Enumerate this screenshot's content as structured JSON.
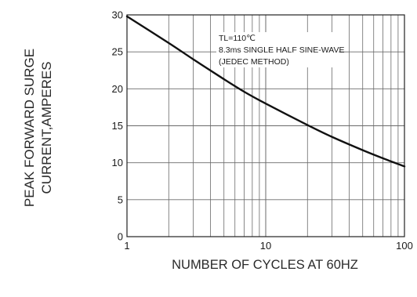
{
  "chart_data": {
    "type": "line",
    "xlabel": "NUMBER  OF  CYCLES AT 60HZ",
    "ylabel_lines": [
      "PEAK FORWARD SURGE",
      "CURRENT,AMPERES"
    ],
    "x_scale": "log",
    "xlim": [
      1,
      100
    ],
    "ylim": [
      0,
      30
    ],
    "x_ticks": [
      1,
      10,
      100
    ],
    "x_tick_labels": [
      "1",
      "10",
      "100"
    ],
    "y_ticks": [
      0,
      5,
      10,
      15,
      20,
      25,
      30
    ],
    "y_tick_labels": [
      "0",
      "5",
      "10",
      "15",
      "20",
      "25",
      "30"
    ],
    "grid": true,
    "annotation_lines": [
      "TL=110℃",
      "8.3ms SINGLE HALF SINE-WAVE",
      "(JEDEC METHOD)"
    ],
    "series": [
      {
        "color": "#111111",
        "x": [
          1,
          2,
          3,
          5,
          7,
          10,
          20,
          30,
          50,
          70,
          100
        ],
        "y": [
          29.8,
          26.2,
          24.0,
          21.3,
          19.6,
          18.0,
          15.1,
          13.5,
          11.7,
          10.6,
          9.5
        ]
      }
    ]
  }
}
